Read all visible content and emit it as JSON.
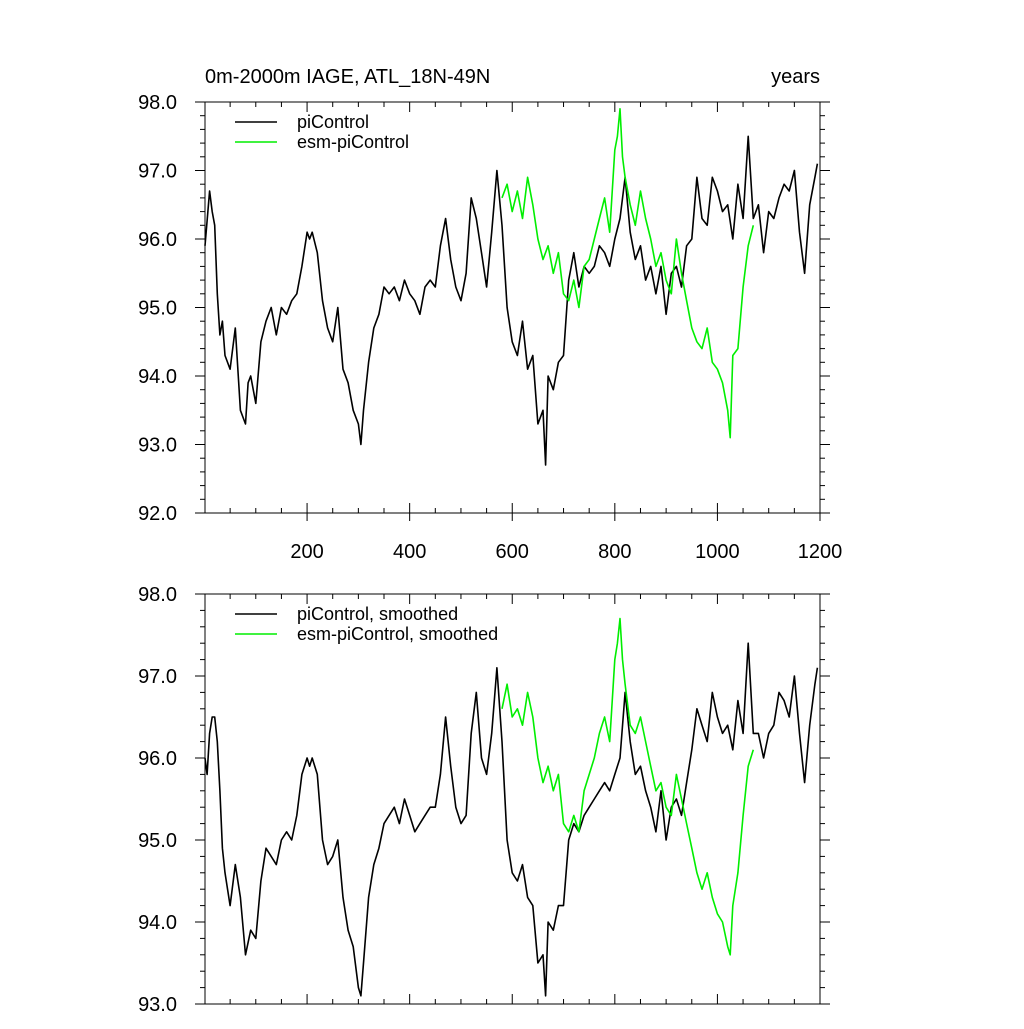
{
  "chart_data": [
    {
      "type": "line",
      "title": "0m-2000m IAGE, ATL_18N-49N",
      "title_right": "years",
      "xlabel": "",
      "ylabel": "",
      "xlim": [
        1,
        1200
      ],
      "ylim": [
        92.0,
        98.0
      ],
      "yticks": [
        "92.0",
        "93.0",
        "94.0",
        "95.0",
        "96.0",
        "97.0",
        "98.0"
      ],
      "xticks": [
        "200",
        "400",
        "600",
        "800",
        "1000",
        "1200"
      ],
      "legend_position": "top-left",
      "series": [
        {
          "name": "piControl",
          "color": "#000000",
          "x": [
            1,
            10,
            15,
            20,
            25,
            30,
            35,
            40,
            50,
            60,
            70,
            80,
            85,
            90,
            100,
            110,
            120,
            130,
            140,
            150,
            160,
            170,
            180,
            190,
            200,
            205,
            210,
            220,
            230,
            240,
            250,
            260,
            270,
            280,
            290,
            300,
            305,
            310,
            320,
            330,
            340,
            350,
            360,
            370,
            380,
            390,
            400,
            410,
            420,
            430,
            440,
            450,
            460,
            470,
            480,
            490,
            500,
            510,
            520,
            530,
            540,
            550,
            560,
            570,
            580,
            590,
            600,
            610,
            620,
            630,
            640,
            650,
            660,
            665,
            670,
            680,
            690,
            700,
            710,
            720,
            730,
            740,
            750,
            760,
            770,
            780,
            790,
            800,
            810,
            820,
            830,
            840,
            850,
            860,
            870,
            880,
            890,
            900,
            910,
            920,
            930,
            940,
            950,
            960,
            970,
            980,
            990,
            1000,
            1010,
            1020,
            1030,
            1040,
            1050,
            1060,
            1070,
            1080,
            1090,
            1100,
            1110,
            1120,
            1130,
            1140,
            1150,
            1160,
            1170,
            1180,
            1190,
            1195
          ],
          "values": [
            95.9,
            96.7,
            96.4,
            96.2,
            95.2,
            94.6,
            94.8,
            94.3,
            94.1,
            94.7,
            93.5,
            93.3,
            93.9,
            94.0,
            93.6,
            94.5,
            94.8,
            95.0,
            94.6,
            95.0,
            94.9,
            95.1,
            95.2,
            95.6,
            96.1,
            96.0,
            96.1,
            95.8,
            95.1,
            94.7,
            94.5,
            95.0,
            94.1,
            93.9,
            93.5,
            93.3,
            93.0,
            93.5,
            94.2,
            94.7,
            94.9,
            95.3,
            95.2,
            95.3,
            95.1,
            95.4,
            95.2,
            95.1,
            94.9,
            95.3,
            95.4,
            95.3,
            95.9,
            96.3,
            95.7,
            95.3,
            95.1,
            95.5,
            96.6,
            96.3,
            95.8,
            95.3,
            96.1,
            97.0,
            96.2,
            95.0,
            94.5,
            94.3,
            94.8,
            94.1,
            94.3,
            93.3,
            93.5,
            92.7,
            94.0,
            93.8,
            94.2,
            94.3,
            95.4,
            95.8,
            95.3,
            95.6,
            95.5,
            95.6,
            95.9,
            95.8,
            95.6,
            96.0,
            96.3,
            96.9,
            96.1,
            95.7,
            95.9,
            95.4,
            95.6,
            95.2,
            95.6,
            94.9,
            95.5,
            95.6,
            95.3,
            95.9,
            96.0,
            96.9,
            96.3,
            96.2,
            96.9,
            96.7,
            96.4,
            96.5,
            96.0,
            96.8,
            96.3,
            97.5,
            96.3,
            96.5,
            95.8,
            96.4,
            96.3,
            96.6,
            96.8,
            96.7,
            97.0,
            96.1,
            95.5,
            96.5,
            96.9,
            97.1
          ]
        },
        {
          "name": "esm-piControl",
          "color": "#00ee00",
          "x": [
            580,
            590,
            600,
            610,
            620,
            630,
            640,
            650,
            660,
            670,
            680,
            690,
            700,
            710,
            720,
            730,
            740,
            750,
            760,
            770,
            780,
            790,
            800,
            805,
            810,
            815,
            820,
            830,
            840,
            850,
            860,
            870,
            880,
            890,
            900,
            910,
            920,
            930,
            940,
            950,
            960,
            970,
            980,
            990,
            1000,
            1010,
            1020,
            1025,
            1030,
            1040,
            1050,
            1060,
            1070
          ],
          "values": [
            96.6,
            96.8,
            96.4,
            96.7,
            96.3,
            96.9,
            96.5,
            96.0,
            95.7,
            95.9,
            95.5,
            95.8,
            95.2,
            95.1,
            95.4,
            95.0,
            95.6,
            95.7,
            96.0,
            96.3,
            96.6,
            96.1,
            97.3,
            97.5,
            97.9,
            97.2,
            96.9,
            96.5,
            96.2,
            96.7,
            96.3,
            96.0,
            95.6,
            95.8,
            95.4,
            95.2,
            96.0,
            95.5,
            95.1,
            94.7,
            94.5,
            94.4,
            94.7,
            94.2,
            94.1,
            93.9,
            93.5,
            93.1,
            94.3,
            94.4,
            95.3,
            95.9,
            96.2
          ]
        }
      ]
    },
    {
      "type": "line",
      "title": "",
      "xlabel": "",
      "ylabel": "",
      "xlim": [
        1,
        1200
      ],
      "ylim": [
        93.0,
        98.0
      ],
      "yticks": [
        "93.0",
        "94.0",
        "95.0",
        "96.0",
        "97.0",
        "98.0"
      ],
      "legend_position": "top-left",
      "series": [
        {
          "name": "piControl, smoothed",
          "color": "#000000",
          "x": [
            1,
            5,
            10,
            15,
            20,
            25,
            30,
            35,
            40,
            50,
            60,
            70,
            80,
            90,
            100,
            110,
            120,
            130,
            140,
            150,
            160,
            170,
            180,
            190,
            200,
            205,
            210,
            220,
            230,
            240,
            250,
            260,
            270,
            280,
            290,
            300,
            305,
            310,
            320,
            330,
            340,
            350,
            360,
            370,
            380,
            390,
            400,
            410,
            420,
            430,
            440,
            450,
            460,
            470,
            480,
            490,
            500,
            510,
            520,
            530,
            540,
            550,
            560,
            570,
            580,
            590,
            600,
            610,
            620,
            630,
            640,
            650,
            660,
            665,
            670,
            680,
            690,
            700,
            710,
            720,
            730,
            740,
            750,
            760,
            770,
            780,
            790,
            800,
            810,
            820,
            830,
            840,
            850,
            860,
            870,
            880,
            890,
            900,
            910,
            920,
            930,
            940,
            950,
            960,
            970,
            980,
            990,
            1000,
            1010,
            1020,
            1030,
            1040,
            1050,
            1060,
            1070,
            1080,
            1090,
            1100,
            1110,
            1120,
            1130,
            1140,
            1150,
            1160,
            1170,
            1180,
            1190,
            1195
          ],
          "values": [
            96.0,
            95.8,
            96.3,
            96.5,
            96.5,
            96.2,
            95.6,
            94.9,
            94.6,
            94.2,
            94.7,
            94.3,
            93.6,
            93.9,
            93.8,
            94.5,
            94.9,
            94.8,
            94.7,
            95.0,
            95.1,
            95.0,
            95.3,
            95.8,
            96.0,
            95.9,
            96.0,
            95.8,
            95.0,
            94.7,
            94.8,
            95.0,
            94.3,
            93.9,
            93.7,
            93.2,
            93.1,
            93.5,
            94.3,
            94.7,
            94.9,
            95.2,
            95.3,
            95.4,
            95.2,
            95.5,
            95.3,
            95.1,
            95.2,
            95.3,
            95.4,
            95.4,
            95.8,
            96.5,
            95.9,
            95.4,
            95.2,
            95.3,
            96.3,
            96.8,
            96.0,
            95.8,
            96.3,
            97.1,
            96.2,
            95.0,
            94.6,
            94.5,
            94.7,
            94.3,
            94.2,
            93.5,
            93.6,
            93.1,
            94.0,
            93.9,
            94.2,
            94.2,
            95.0,
            95.2,
            95.1,
            95.3,
            95.4,
            95.5,
            95.6,
            95.7,
            95.6,
            95.8,
            96.0,
            96.8,
            96.2,
            95.8,
            95.9,
            95.6,
            95.4,
            95.1,
            95.6,
            95.0,
            95.4,
            95.5,
            95.3,
            95.7,
            96.1,
            96.6,
            96.4,
            96.2,
            96.8,
            96.5,
            96.3,
            96.4,
            96.1,
            96.7,
            96.3,
            97.4,
            96.3,
            96.3,
            96.0,
            96.3,
            96.4,
            96.8,
            96.7,
            96.5,
            97.0,
            96.3,
            95.7,
            96.4,
            96.9,
            97.1
          ]
        },
        {
          "name": "esm-piControl, smoothed",
          "color": "#00ee00",
          "x": [
            580,
            590,
            600,
            610,
            620,
            630,
            640,
            650,
            660,
            670,
            680,
            690,
            700,
            710,
            720,
            730,
            740,
            750,
            760,
            770,
            780,
            790,
            800,
            805,
            810,
            815,
            820,
            830,
            840,
            850,
            860,
            870,
            880,
            890,
            900,
            910,
            920,
            930,
            940,
            950,
            960,
            970,
            980,
            990,
            1000,
            1010,
            1020,
            1025,
            1030,
            1040,
            1050,
            1060,
            1070
          ],
          "values": [
            96.6,
            96.9,
            96.5,
            96.6,
            96.4,
            96.8,
            96.5,
            96.0,
            95.7,
            95.9,
            95.6,
            95.8,
            95.2,
            95.1,
            95.3,
            95.1,
            95.6,
            95.8,
            96.0,
            96.3,
            96.5,
            96.2,
            97.2,
            97.4,
            97.7,
            97.2,
            96.9,
            96.4,
            96.3,
            96.5,
            96.2,
            95.9,
            95.6,
            95.7,
            95.4,
            95.3,
            95.8,
            95.5,
            95.2,
            94.9,
            94.6,
            94.4,
            94.6,
            94.3,
            94.1,
            94.0,
            93.7,
            93.6,
            94.2,
            94.6,
            95.3,
            95.9,
            96.1
          ]
        }
      ]
    }
  ]
}
